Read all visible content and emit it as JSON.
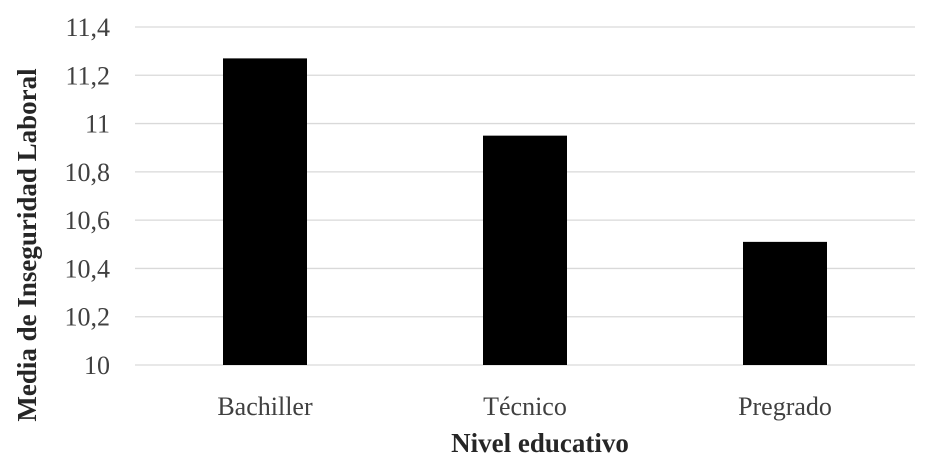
{
  "chart_data": {
    "type": "bar",
    "categories": [
      "Bachiller",
      "Técnico",
      "Pregrado"
    ],
    "values": [
      11.27,
      10.95,
      10.51
    ],
    "xlabel": "Nivel educativo",
    "ylabel": "Media de Inseguridad Laboral",
    "ylim": [
      10,
      11.4
    ],
    "yticks": [
      "10",
      "10,2",
      "10,4",
      "10,6",
      "10,8",
      "11",
      "11,2",
      "11,4"
    ],
    "grid": true,
    "legend": false,
    "colors": {
      "bar": "#000000",
      "grid": "#d9d9d9",
      "tick_text": "#404040",
      "title_text": "#262626"
    }
  }
}
